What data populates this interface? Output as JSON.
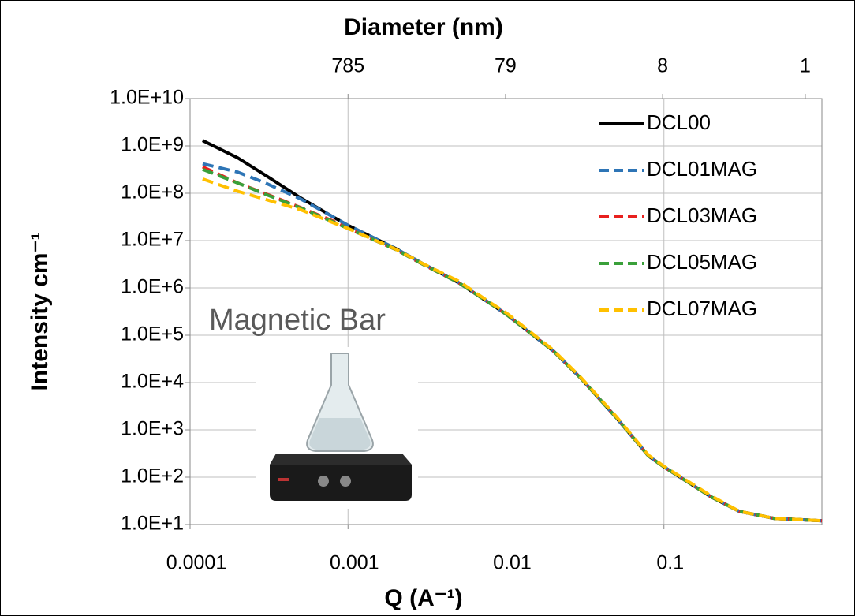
{
  "chart_data": {
    "type": "line",
    "title": "Diameter (nm)",
    "x_label": "Q (A⁻¹)",
    "y_label": "Intensity cm⁻¹",
    "annotation": "Magnetic Bar",
    "x_scale": "log",
    "y_scale": "log",
    "grid": true,
    "legend": "upper right",
    "x": [
      0.00012,
      0.0002,
      0.0003,
      0.0005,
      0.0008,
      0.001,
      0.002,
      0.003,
      0.005,
      0.008,
      0.01,
      0.02,
      0.03,
      0.05,
      0.08,
      0.1,
      0.2,
      0.3,
      0.5,
      0.8,
      1
    ],
    "xlim": [
      0.0001,
      1
    ],
    "xticks": [
      0.0001,
      0.001,
      0.01,
      0.1
    ],
    "x2lim": [
      7850,
      0.785
    ],
    "x2ticks": [
      785,
      79,
      8,
      1
    ],
    "ylim": [
      10,
      10000000000
    ],
    "yticks": [
      {
        "value": 10,
        "label": "1.0E+1"
      },
      {
        "value": 100,
        "label": "1.0E+2"
      },
      {
        "value": 1000,
        "label": "1.0E+3"
      },
      {
        "value": 10000,
        "label": "1.0E+4"
      },
      {
        "value": 100000,
        "label": "1.0E+5"
      },
      {
        "value": 1000000,
        "label": "1.0E+6"
      },
      {
        "value": 10000000,
        "label": "1.0E+7"
      },
      {
        "value": 100000000,
        "label": "1.0E+8"
      },
      {
        "value": 1000000000,
        "label": "1.0E+9"
      },
      {
        "value": 10000000000,
        "label": "1.0E+10"
      }
    ],
    "series": [
      {
        "name": "DCL00",
        "color": "#000000",
        "style": "solid",
        "values": [
          1300000000,
          560000000,
          240000000,
          80000000,
          32000000,
          21000000,
          6800000,
          3200000,
          1300000,
          460000,
          280000,
          46000,
          12000,
          1800,
          280,
          165,
          38,
          19,
          13.5,
          12.5,
          12
        ]
      },
      {
        "name": "DCL01MAG",
        "color": "#2e75b6",
        "style": "dashed",
        "values": [
          420000000,
          280000000,
          165000000,
          76000000,
          32000000,
          21000000,
          6800000,
          3200000,
          1300000,
          460000,
          280000,
          46000,
          12000,
          1800,
          280,
          165,
          38,
          19,
          13.5,
          12.5,
          12
        ]
      },
      {
        "name": "DCL03MAG",
        "color": "#e8201e",
        "style": "dashed",
        "values": [
          360000000,
          165000000,
          98000000,
          50000000,
          26000000,
          18000000,
          6500000,
          3100000,
          1300000,
          460000,
          280000,
          46000,
          12000,
          1800,
          280,
          165,
          38,
          19,
          13.5,
          12.5,
          12
        ]
      },
      {
        "name": "DCL05MAG",
        "color": "#3aa03a",
        "style": "dashed",
        "values": [
          320000000,
          165000000,
          95000000,
          49000000,
          25000000,
          18000000,
          6500000,
          3100000,
          1300000,
          460000,
          280000,
          46000,
          12000,
          1800,
          280,
          165,
          38,
          19,
          13.5,
          12.5,
          12
        ]
      },
      {
        "name": "DCL07MAG",
        "color": "#ffc000",
        "style": "dashed",
        "values": [
          200000000,
          110000000,
          74000000,
          45000000,
          24000000,
          18000000,
          6600000,
          3200000,
          1400000,
          480000,
          300000,
          48000,
          12500,
          1900,
          290,
          170,
          40,
          19,
          13.5,
          12.5,
          12
        ]
      }
    ]
  }
}
